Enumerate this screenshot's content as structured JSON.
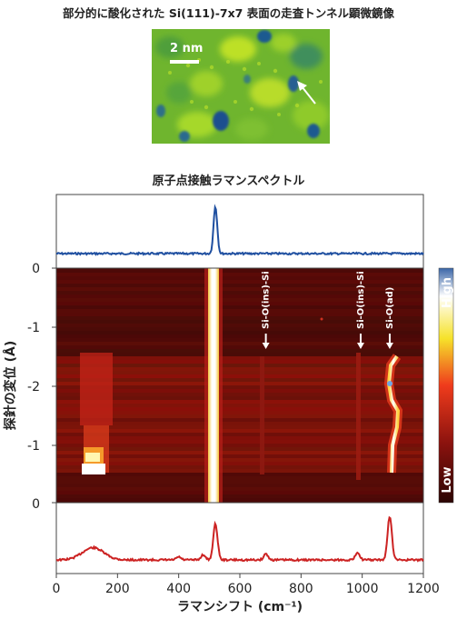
{
  "stm": {
    "title": "部分的に酸化された Si(111)-7x7 表面の走査トンネル顕微鏡像",
    "scale_bar_label": "2 nm"
  },
  "raman": {
    "title": "原子点接触ラマンスペクトル"
  },
  "colors": {
    "top_spectrum": "#1f4fa0",
    "bottom_spectrum": "#cc2222",
    "heatmap_background": "#4a0a08"
  },
  "chart_data": [
    {
      "type": "line",
      "name": "top-spectrum",
      "x_range": [
        0,
        1200
      ],
      "y_tick_labels": [
        "0"
      ],
      "peaks": [
        {
          "x": 520,
          "height": 1.0
        }
      ]
    },
    {
      "type": "heatmap",
      "name": "raman-displacement-map",
      "xlabel": "ラマンシフト (cm⁻¹)",
      "ylabel": "探針の変位 (Å)",
      "xlim": [
        0,
        1200
      ],
      "x_ticks": [
        0,
        200,
        400,
        600,
        800,
        1000,
        1200
      ],
      "y_tick_labels": [
        "0",
        "-1",
        "-2",
        "-1",
        "0"
      ],
      "colorbar": {
        "top_label": "High",
        "bottom_label": "Low"
      },
      "annotations": [
        {
          "label": "Si-O(ins)-Si",
          "x": 685
        },
        {
          "label": "Si-O(ins)-Si",
          "x": 995
        },
        {
          "label": "Si-O(ad)",
          "x": 1090
        }
      ]
    },
    {
      "type": "line",
      "name": "bottom-spectrum",
      "x_range": [
        0,
        1200
      ],
      "peaks": [
        {
          "x": 120,
          "height": 0.28
        },
        {
          "x": 400,
          "height": 0.07
        },
        {
          "x": 480,
          "height": 0.12
        },
        {
          "x": 520,
          "height": 0.82
        },
        {
          "x": 685,
          "height": 0.14
        },
        {
          "x": 985,
          "height": 0.18
        },
        {
          "x": 1090,
          "height": 1.0
        }
      ]
    }
  ]
}
